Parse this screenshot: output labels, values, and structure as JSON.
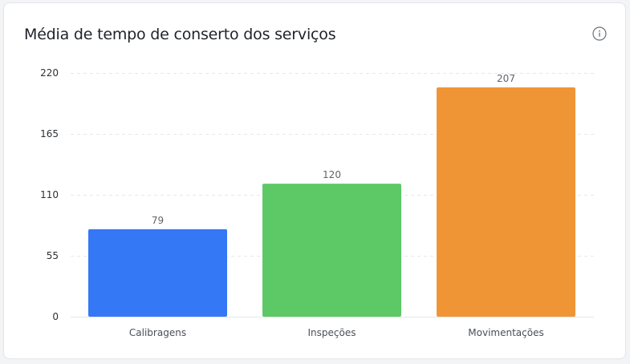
{
  "card": {
    "title": "Média de tempo de conserto dos serviços",
    "info_icon": "info-circle-icon"
  },
  "chart_data": {
    "type": "bar",
    "title": "Média de tempo de conserto dos serviços",
    "categories": [
      "Calibragens",
      "Inspeções",
      "Movimentações"
    ],
    "values": [
      79,
      120,
      207
    ],
    "colors": [
      "#3578f6",
      "#5cc966",
      "#f09536"
    ],
    "ylim": [
      0,
      220
    ],
    "yticks": [
      0,
      55,
      110,
      165,
      220
    ],
    "grid": true,
    "xlabel": "",
    "ylabel": ""
  }
}
